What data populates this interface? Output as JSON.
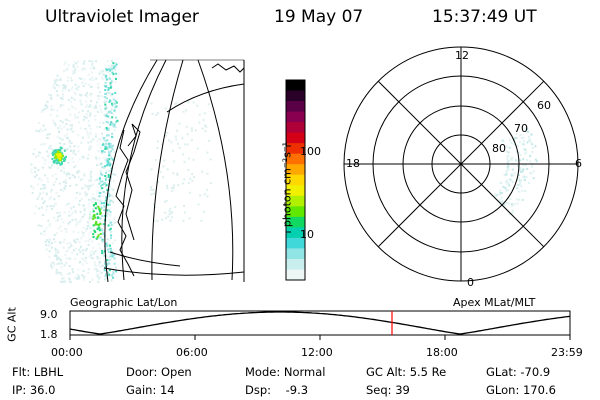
{
  "header": {
    "instrument": "Ultraviolet Imager",
    "date": "19 May 07",
    "time": "15:37:49 UT"
  },
  "colorbar": {
    "unit_label": "photon cm⁻²s⁻¹",
    "ticks": [
      "100",
      "10"
    ],
    "colors": [
      "#000000",
      "#2a0028",
      "#5a0046",
      "#8a0050",
      "#b00038",
      "#d40018",
      "#ee3000",
      "#ff7000",
      "#ffa800",
      "#ffd800",
      "#f0f000",
      "#b0f000",
      "#60e800",
      "#10d860",
      "#00d0b0",
      "#40d8d8",
      "#90e4e4",
      "#c8eeee",
      "#eef6f6"
    ]
  },
  "polar_plot": {
    "hour_labels": {
      "top": "12",
      "left": "18",
      "right": "6",
      "bottom": "0"
    },
    "lat_labels": [
      "60",
      "70",
      "80"
    ]
  },
  "timeline": {
    "left_title": "Geographic Lat/Lon",
    "right_title": "Apex MLat/MLT",
    "axis_label": "GC Alt",
    "y_ticks": [
      "9.0",
      "1.8"
    ],
    "x_ticks": [
      "00:00",
      "06:00",
      "12:00",
      "18:00",
      "23:59"
    ],
    "current_marker_color": "#ff0000"
  },
  "status": {
    "flt": "Flt: LBHL",
    "ip": "IP: 36.0",
    "door": "Door: Open",
    "gain": "Gain: 14",
    "mode": "Mode: Normal",
    "dsp": "Dsp:    -9.3",
    "gcalt": "GC Alt: 5.5 Re",
    "seq": "Seq: 39",
    "glat": "GLat: -70.9",
    "glon": "GLon: 170.6"
  }
}
